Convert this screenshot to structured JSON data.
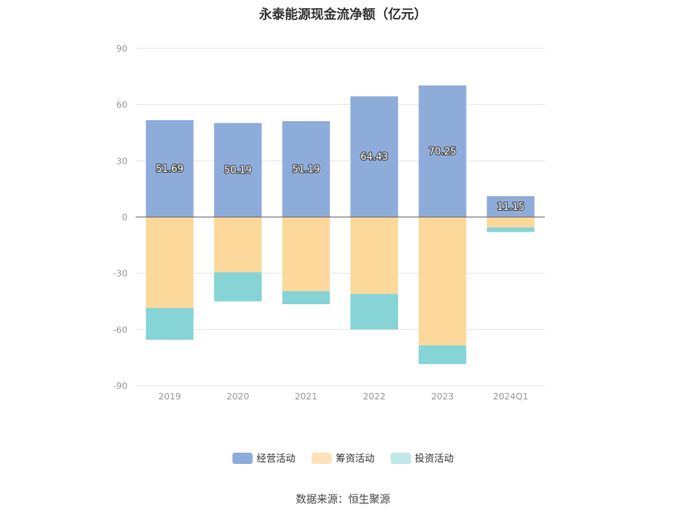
{
  "chart_data": {
    "type": "bar",
    "stacked": true,
    "title": "永泰能源现金流净额（亿元）",
    "categories": [
      "2019",
      "2020",
      "2021",
      "2022",
      "2023",
      "2024Q1"
    ],
    "ylim": [
      -90,
      90
    ],
    "yticks": [
      90,
      60,
      30,
      0,
      -30,
      -60,
      -90
    ],
    "grid": true,
    "legend_position": "bottom",
    "series": [
      {
        "name": "经营活动",
        "color": "#8eacda",
        "values": [
          51.69,
          50.19,
          51.19,
          64.43,
          70.25,
          11.15
        ],
        "labels": [
          "51.69",
          "50.19",
          "51.19",
          "64.43",
          "70.25",
          "11.15"
        ]
      },
      {
        "name": "筹资活动",
        "color": "#fdd89b",
        "values": [
          -48.5,
          -29.5,
          -39.5,
          -41.0,
          -68.5,
          -5.5
        ]
      },
      {
        "name": "投资活动",
        "color": "#86d4d6",
        "values": [
          -17.0,
          -15.5,
          -7.0,
          -19.0,
          -10.0,
          -2.5
        ]
      }
    ],
    "legend_colors": [
      "#8eacda",
      "#fde3bb",
      "#bfe8e9"
    ]
  },
  "source": "数据来源：恒生聚源"
}
